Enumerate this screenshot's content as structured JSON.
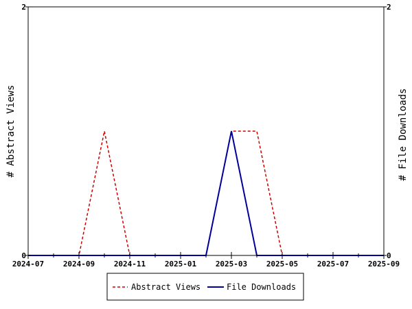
{
  "chart_data": {
    "type": "line",
    "x_ticks": [
      "2024-07",
      "2024-09",
      "2024-11",
      "2025-01",
      "2025-03",
      "2025-05",
      "2025-07",
      "2025-09"
    ],
    "x_range": [
      "2024-07",
      "2025-09"
    ],
    "y_left": {
      "label": "# Abstract Views",
      "range": [
        0,
        2
      ],
      "ticks": [
        "0",
        "2"
      ]
    },
    "y_right": {
      "label": "# File Downloads",
      "range": [
        0,
        2
      ],
      "ticks": [
        "0",
        "2"
      ]
    },
    "grid": false,
    "legend_position": "bottom-center",
    "series": [
      {
        "name": "Abstract Views",
        "axis": "left",
        "color": "#cc0000",
        "dash": "dashed",
        "points": [
          [
            "2024-07",
            0
          ],
          [
            "2024-08",
            0
          ],
          [
            "2024-09",
            0
          ],
          [
            "2024-10",
            1
          ],
          [
            "2024-11",
            0
          ],
          [
            "2024-12",
            0
          ],
          [
            "2025-01",
            0
          ],
          [
            "2025-02",
            0
          ],
          [
            "2025-03",
            1
          ],
          [
            "2025-04",
            1
          ],
          [
            "2025-05",
            0
          ],
          [
            "2025-06",
            0
          ],
          [
            "2025-07",
            0
          ],
          [
            "2025-08",
            0
          ],
          [
            "2025-09",
            0
          ]
        ]
      },
      {
        "name": "File Downloads",
        "axis": "right",
        "color": "#000099",
        "dash": "solid",
        "points": [
          [
            "2024-07",
            0
          ],
          [
            "2024-08",
            0
          ],
          [
            "2024-09",
            0
          ],
          [
            "2024-10",
            0
          ],
          [
            "2024-11",
            0
          ],
          [
            "2024-12",
            0
          ],
          [
            "2025-01",
            0
          ],
          [
            "2025-02",
            0
          ],
          [
            "2025-03",
            1
          ],
          [
            "2025-04",
            0
          ],
          [
            "2025-05",
            0
          ],
          [
            "2025-06",
            0
          ],
          [
            "2025-07",
            0
          ],
          [
            "2025-08",
            0
          ],
          [
            "2025-09",
            0
          ]
        ]
      }
    ]
  }
}
